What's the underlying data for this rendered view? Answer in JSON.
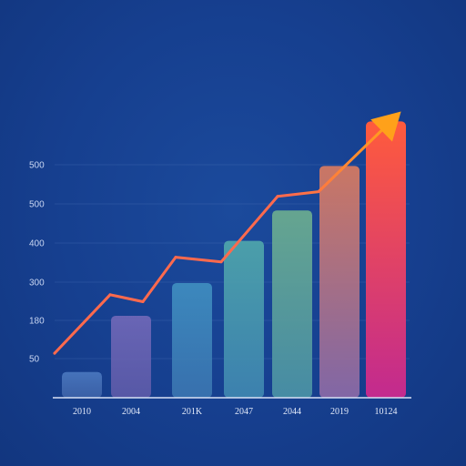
{
  "chart_data": {
    "type": "bar",
    "title": "",
    "xlabel": "",
    "ylabel": "",
    "y_tick_labels": [
      "500",
      "500",
      "400",
      "300",
      "180",
      "50"
    ],
    "categories": [
      "2010",
      "2004",
      "201K",
      "2047",
      "2044",
      "2019",
      "10124"
    ],
    "values": [
      55,
      175,
      245,
      335,
      400,
      495,
      590
    ],
    "ylim": [
      0,
      620
    ],
    "trend_line": {
      "values": [
        95,
        220,
        205,
        300,
        290,
        430,
        440,
        595
      ],
      "color": "#ff6a4d",
      "arrow_color": "#ffa11a"
    },
    "bar_colors": [
      [
        "#4a78bf",
        "#3d62a8"
      ],
      [
        "#7068b8",
        "#5c5aa8"
      ],
      [
        "#3f8ec0",
        "#3a74b0"
      ],
      [
        "#4fa6ab",
        "#3f86b1"
      ],
      [
        "#6cad8f",
        "#4a92a6"
      ],
      [
        "#d97b60",
        "#8a6aa8"
      ],
      [
        "#ff5b3c",
        "#c22a8f"
      ]
    ],
    "grid": true,
    "legend": "none"
  }
}
